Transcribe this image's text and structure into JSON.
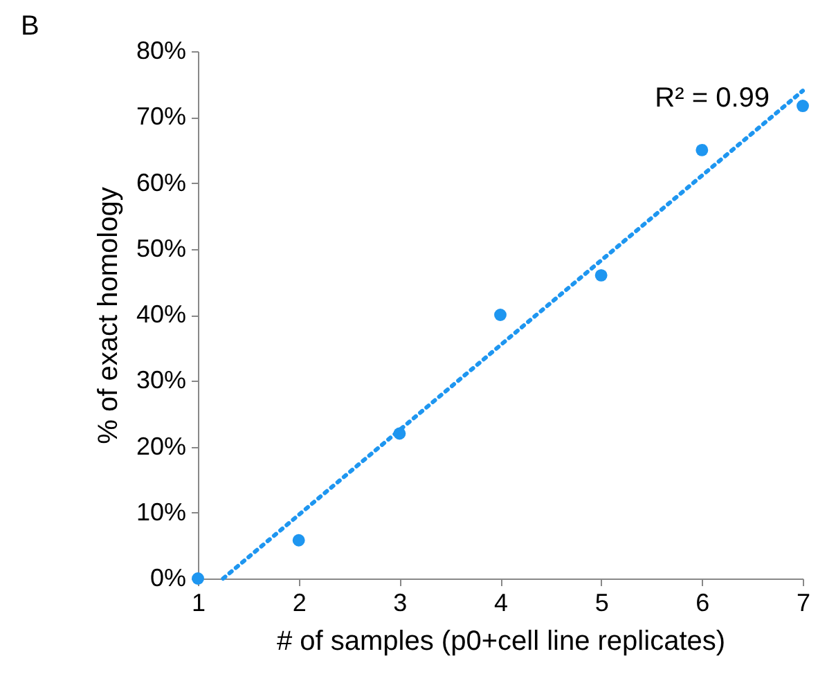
{
  "chart_data": {
    "type": "scatter",
    "xlabel": "# of samples (p0+cell line replicates)",
    "ylabel": "% of exact homology",
    "annotations": [
      "B",
      "R² = 0.99"
    ],
    "xlim": [
      1,
      7
    ],
    "xticks": [
      1,
      2,
      3,
      4,
      5,
      6,
      7
    ],
    "ylim": [
      0,
      80
    ],
    "yticks": [
      {
        "value": 0,
        "label": "0%"
      },
      {
        "value": 10,
        "label": "10%"
      },
      {
        "value": 20,
        "label": "20%"
      },
      {
        "value": 30,
        "label": "30%"
      },
      {
        "value": 40,
        "label": "40%"
      },
      {
        "value": 50,
        "label": "50%"
      },
      {
        "value": 60,
        "label": "60%"
      },
      {
        "value": 70,
        "label": "70%"
      },
      {
        "value": 80,
        "label": "80%"
      }
    ],
    "grid": false,
    "marker": "circle",
    "series": [
      {
        "color": "#1e96f0",
        "x": [
          1,
          2,
          3,
          4,
          5,
          6,
          7
        ],
        "values": [
          0,
          5.8,
          22,
          40,
          46,
          65,
          71.7
        ]
      },
      {
        "type": "line",
        "line_style": "dotted",
        "marker": "none",
        "color": "#1e96f0",
        "x": [
          1.25,
          7
        ],
        "values": [
          0,
          74
        ]
      }
    ]
  }
}
